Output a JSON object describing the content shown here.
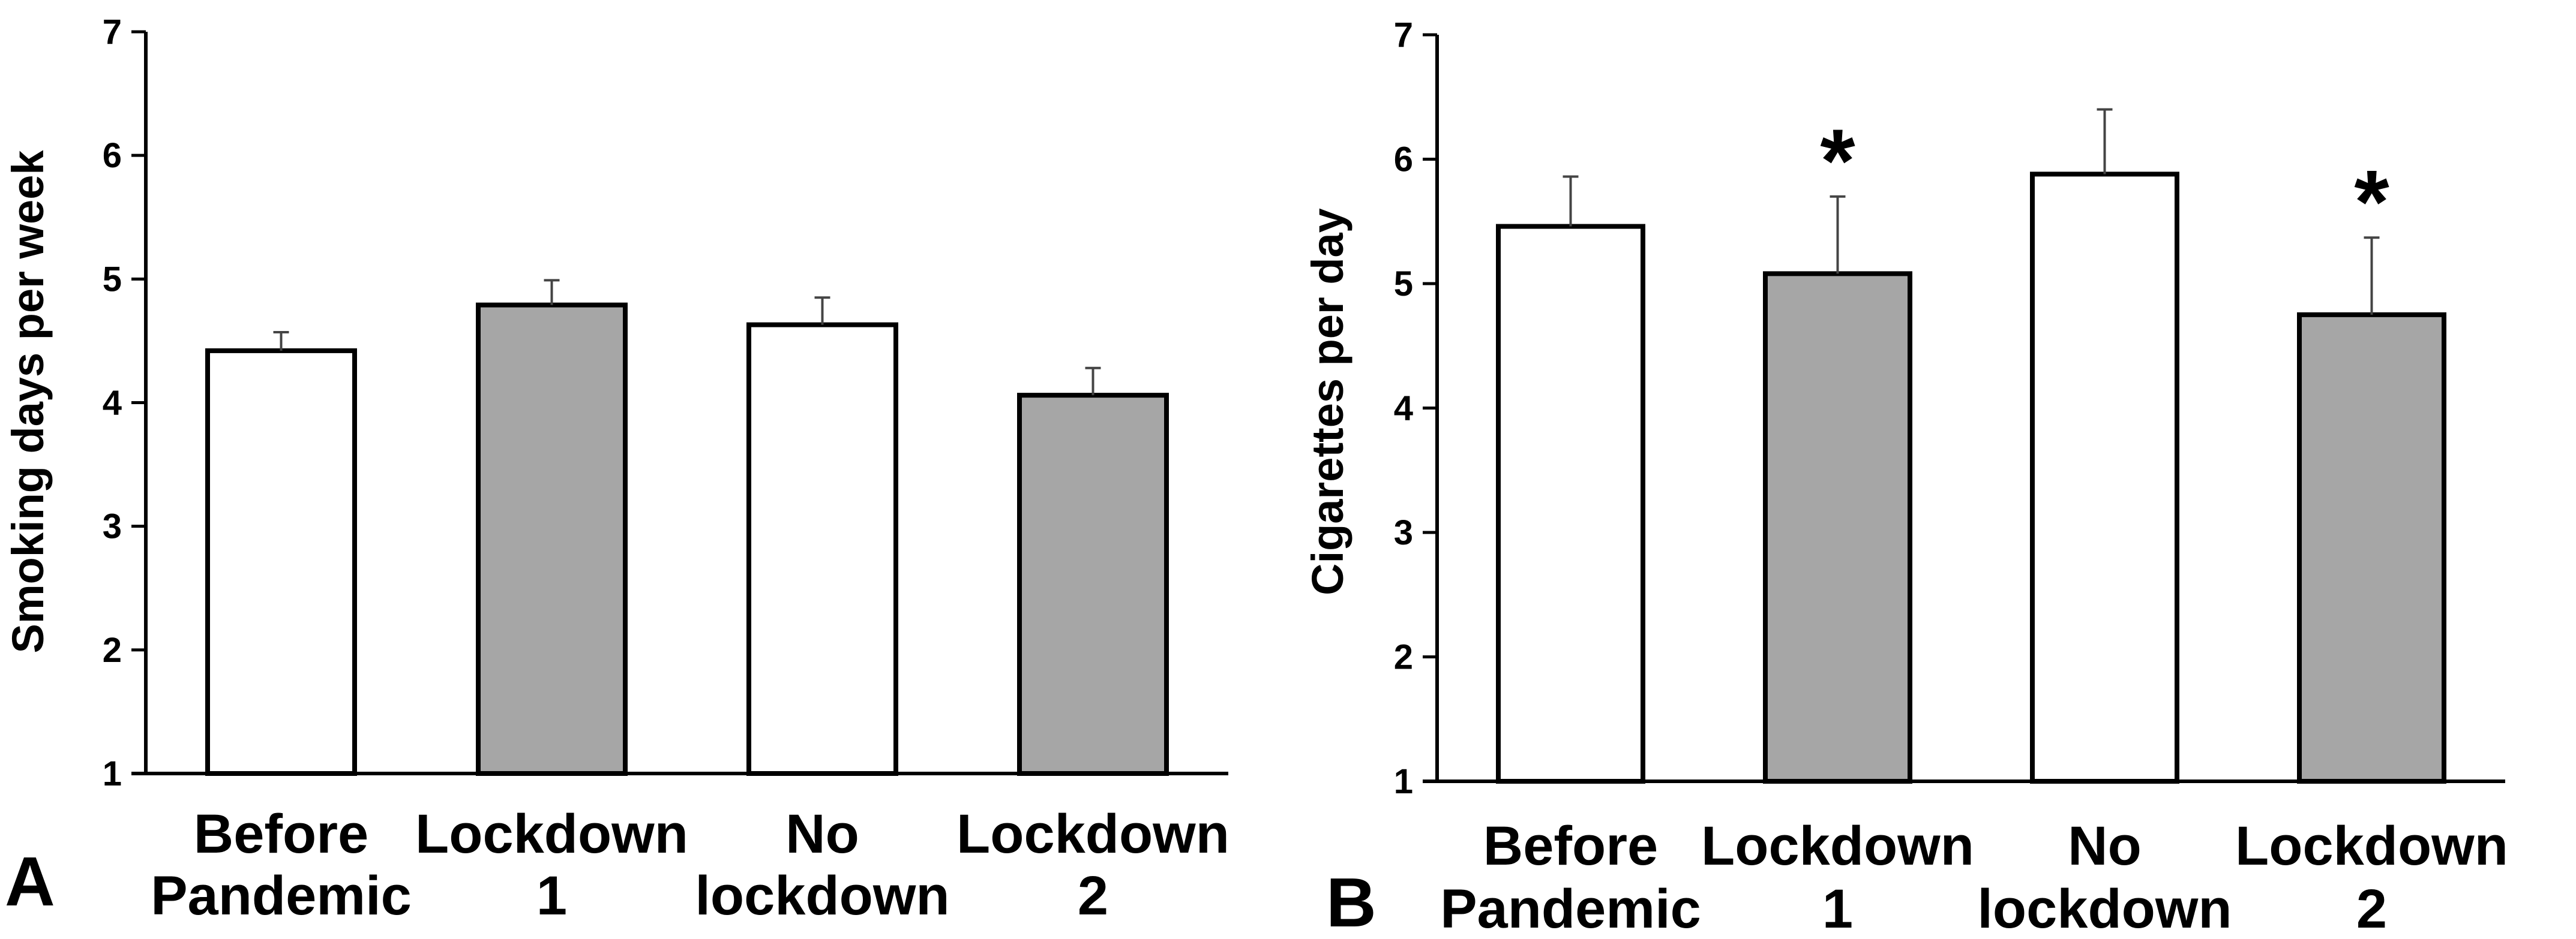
{
  "figure": {
    "panel_labels": [
      "A",
      "B"
    ]
  },
  "chart_data": [
    {
      "type": "bar",
      "panel": "A",
      "title": "",
      "xlabel": "",
      "ylabel": "Smoking days per week",
      "ylim": [
        1,
        7
      ],
      "yticks": [
        "1",
        "2",
        "3",
        "4",
        "5",
        "6",
        "7"
      ],
      "grid": false,
      "categories": [
        [
          "Before",
          "Pandemic"
        ],
        [
          "Lockdown",
          "1"
        ],
        [
          "No",
          "lockdown"
        ],
        [
          "Lockdown",
          "2"
        ]
      ],
      "values": [
        4.42,
        4.79,
        4.63,
        4.06
      ],
      "errors": [
        0.15,
        0.2,
        0.22,
        0.22
      ],
      "bar_colors": [
        "#ffffff",
        "#a6a6a6",
        "#ffffff",
        "#a6a6a6"
      ],
      "annotations": [
        "",
        "",
        "",
        ""
      ]
    },
    {
      "type": "bar",
      "panel": "B",
      "title": "",
      "xlabel": "",
      "ylabel": "Cigarettes per day",
      "ylim": [
        1,
        7
      ],
      "yticks": [
        "1",
        "2",
        "3",
        "4",
        "5",
        "6",
        "7"
      ],
      "grid": false,
      "categories": [
        [
          "Before",
          "Pandemic"
        ],
        [
          "Lockdown",
          "1"
        ],
        [
          "No",
          "lockdown"
        ],
        [
          "Lockdown",
          "2"
        ]
      ],
      "values": [
        5.46,
        5.08,
        5.88,
        4.75
      ],
      "errors": [
        0.4,
        0.62,
        0.52,
        0.62
      ],
      "bar_colors": [
        "#ffffff",
        "#a6a6a6",
        "#ffffff",
        "#a6a6a6"
      ],
      "annotations": [
        "",
        "*",
        "",
        "*"
      ]
    }
  ]
}
